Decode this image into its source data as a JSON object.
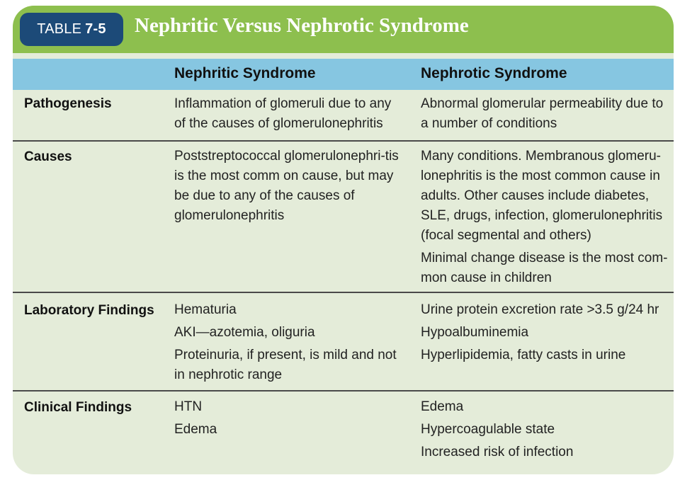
{
  "header": {
    "table_word": "TABLE",
    "table_number": "7-5",
    "title": "Nephritic Versus Nephrotic Syndrome"
  },
  "columns": {
    "nephritic": "Nephritic Syndrome",
    "nephrotic": "Nephrotic Syndrome"
  },
  "rows": [
    {
      "label": "Pathogenesis",
      "nephritic": [
        "Inflammation of glomeruli due to any of the causes of glomerulonephritis"
      ],
      "nephrotic": [
        "Abnormal glomerular permeability due to a number of conditions"
      ]
    },
    {
      "label": "Causes",
      "nephritic": [
        "Poststreptococcal glomerulonephri-tis is the most comm on cause, but may be due to any of the causes of glomerulonephritis"
      ],
      "nephrotic": [
        "Many conditions. Membranous glomeru-lonephritis is the most common cause in adults. Other causes include diabetes, SLE, drugs, infection, glomerulonephritis (focal segmental and others)",
        "Minimal change disease is the most com-mon cause in children"
      ]
    },
    {
      "label": "Laboratory Findings",
      "nephritic": [
        "Hematuria",
        "AKI—azotemia, oliguria",
        "Proteinuria, if present, is mild and not in nephrotic range"
      ],
      "nephrotic": [
        "Urine protein excretion rate >3.5 g/24 hr",
        "Hypoalbuminemia",
        "Hyperlipidemia, fatty casts in urine"
      ]
    },
    {
      "label": "Clinical Findings",
      "nephritic": [
        "HTN",
        "Edema"
      ],
      "nephrotic": [
        "Edema",
        "Hypercoagulable state",
        "Increased risk of infection"
      ]
    }
  ]
}
